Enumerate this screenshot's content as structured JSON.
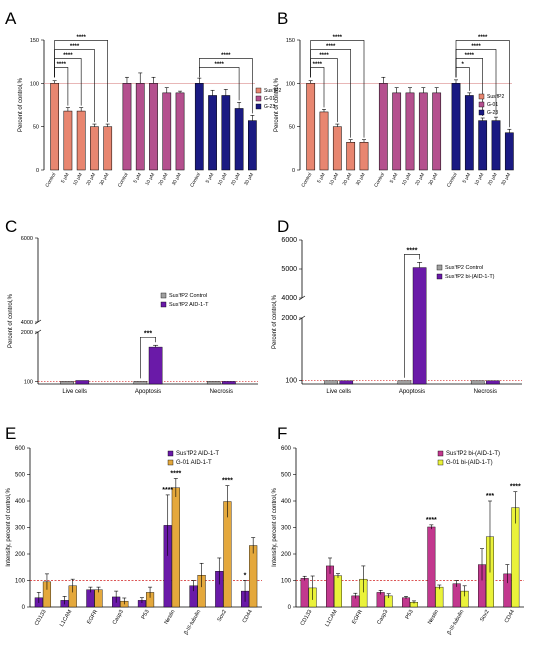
{
  "colors": {
    "salmon": "#e88670",
    "mauve": "#b4508e",
    "navy": "#1a1a82",
    "purple": "#6a1aa8",
    "gold": "#e4a83c",
    "magenta": "#c2388e",
    "yellow": "#eaf23a",
    "grey": "#a0a0a0",
    "refline": "#d98c8c",
    "redline": "#d12020",
    "axis": "#000000"
  },
  "chart_data": [
    {
      "type": "bar",
      "panel_label": "A",
      "ylabel": "Percent of control,%",
      "ylim": [
        0,
        150
      ],
      "yticks": [
        0,
        50,
        100,
        150
      ],
      "reference_line": 100,
      "legend": "right",
      "groups": [
        {
          "name": "SusʼfP2",
          "color": "salmon",
          "categories": [
            "Control",
            "5 μM",
            "10 μM",
            "20 μM",
            "30 μM"
          ],
          "values": [
            100,
            68,
            68,
            50,
            50
          ],
          "errors": [
            3,
            4,
            4,
            3,
            3
          ]
        },
        {
          "name": "G-01",
          "color": "mauve",
          "categories": [
            "Control",
            "5 μM",
            "10 μM",
            "20 μM",
            "30 μM"
          ],
          "values": [
            100,
            100,
            100,
            89,
            89
          ],
          "errors": [
            7,
            12,
            7,
            6,
            2
          ]
        },
        {
          "name": "G-23",
          "color": "navy",
          "categories": [
            "Control",
            "5 μM",
            "10 μM",
            "20 μM",
            "30 μM"
          ],
          "values": [
            100,
            86,
            86,
            71,
            57
          ],
          "errors": [
            6,
            6,
            7,
            7,
            6
          ]
        }
      ],
      "annotations": [
        {
          "from": 0,
          "to": 1,
          "text": "****"
        },
        {
          "from": 0,
          "to": 2,
          "text": "****"
        },
        {
          "from": 0,
          "to": 3,
          "text": "****"
        },
        {
          "from": 0,
          "to": 4,
          "text": "****"
        },
        {
          "from": 10,
          "to": 13,
          "text": "****"
        },
        {
          "from": 10,
          "to": 14,
          "text": "****"
        }
      ]
    },
    {
      "type": "bar",
      "panel_label": "B",
      "ylabel": "Percent of control,%",
      "ylim": [
        0,
        150
      ],
      "yticks": [
        0,
        50,
        100,
        150
      ],
      "reference_line": 100,
      "legend": "right",
      "groups": [
        {
          "name": "SusʼfP2",
          "color": "salmon",
          "categories": [
            "Control",
            "5 μM",
            "10 μM",
            "20 μM",
            "30 μM"
          ],
          "values": [
            100,
            67,
            50,
            32,
            32
          ],
          "errors": [
            3,
            3,
            3,
            3,
            3
          ]
        },
        {
          "name": "G-01",
          "color": "mauve",
          "categories": [
            "Control",
            "5 μM",
            "10 μM",
            "20 μM",
            "30 μM"
          ],
          "values": [
            100,
            89,
            89,
            89,
            89
          ],
          "errors": [
            7,
            6,
            6,
            6,
            6
          ]
        },
        {
          "name": "G-23",
          "color": "navy",
          "categories": [
            "Control",
            "5 μM",
            "10 μM",
            "20 μM",
            "30 μM"
          ],
          "values": [
            100,
            86,
            57,
            57,
            43
          ],
          "errors": [
            4,
            3,
            3,
            4,
            4
          ]
        }
      ],
      "annotations": [
        {
          "from": 0,
          "to": 1,
          "text": "****"
        },
        {
          "from": 0,
          "to": 2,
          "text": "****"
        },
        {
          "from": 0,
          "to": 3,
          "text": "****"
        },
        {
          "from": 0,
          "to": 4,
          "text": "****"
        },
        {
          "from": 10,
          "to": 11,
          "text": "*"
        },
        {
          "from": 10,
          "to": 12,
          "text": "****"
        },
        {
          "from": 10,
          "to": 13,
          "text": "****"
        },
        {
          "from": 10,
          "to": 14,
          "text": "****"
        }
      ]
    },
    {
      "type": "bar",
      "panel_label": "C",
      "ylabel": "Percent of control,%",
      "yticks": [
        100,
        2000,
        4000,
        6000
      ],
      "axis_break": [
        2000,
        4000
      ],
      "reference_line": 100,
      "legend": "right",
      "categories": [
        "Live cells",
        "Apoptosis",
        "Necrosis"
      ],
      "series": [
        {
          "name": "SusʼfP2 Control",
          "color": "grey",
          "values": [
            100,
            100,
            100
          ]
        },
        {
          "name": "SusʼfP2 AID-1-T",
          "color": "purple",
          "values": [
            135,
            1420,
            100
          ],
          "errors": [
            0,
            70,
            0
          ]
        }
      ],
      "annotations": [
        {
          "category": 1,
          "text": "***"
        }
      ]
    },
    {
      "type": "bar",
      "panel_label": "D",
      "ylabel": "Percent of control,%",
      "yticks": [
        100,
        2000,
        4000,
        5000,
        6000
      ],
      "axis_break": [
        2000,
        4000
      ],
      "reference_line": 100,
      "legend": "right",
      "categories": [
        "Live cells",
        "Apoptosis",
        "Necrosis"
      ],
      "series": [
        {
          "name": "SusʼfP2 Control",
          "color": "grey",
          "values": [
            100,
            100,
            100
          ]
        },
        {
          "name": "SusʼfP2 bi-(AID-1-T)",
          "color": "purple",
          "values": [
            100,
            5050,
            100
          ],
          "errors": [
            0,
            180,
            0
          ]
        }
      ],
      "annotations": [
        {
          "category": 1,
          "text": "****"
        }
      ]
    },
    {
      "type": "bar",
      "panel_label": "E",
      "ylabel": "Intensity, percent of control,%",
      "ylim": [
        0,
        600
      ],
      "yticks": [
        0,
        100,
        200,
        300,
        400,
        500,
        600
      ],
      "reference_line": 100,
      "legend": "top-right",
      "categories": [
        "CD133",
        "L1CAM",
        "EGFR",
        "Casp3",
        "P53",
        "Nestin",
        "β-III-tubulin",
        "Sox2",
        "CD44"
      ],
      "series": [
        {
          "name": "SusʼfP2 AID-1-T",
          "color": "purple",
          "values": [
            35,
            25,
            65,
            38,
            25,
            308,
            80,
            135,
            60
          ],
          "errors": [
            20,
            15,
            10,
            22,
            10,
            115,
            20,
            50,
            40
          ]
        },
        {
          "name": "G-01 AID-1-T",
          "color": "gold",
          "values": [
            95,
            80,
            65,
            22,
            55,
            450,
            120,
            398,
            232
          ],
          "errors": [
            30,
            25,
            10,
            12,
            20,
            35,
            45,
            60,
            30
          ]
        }
      ],
      "annotations": [
        {
          "category": 5,
          "series": 0,
          "text": "****"
        },
        {
          "category": 5,
          "series": 1,
          "text": "****"
        },
        {
          "category": 7,
          "series": 1,
          "text": "****"
        },
        {
          "category": 8,
          "series": 0,
          "text": "*"
        }
      ]
    },
    {
      "type": "bar",
      "panel_label": "F",
      "ylabel": "Intensity, percent of control,%",
      "ylim": [
        0,
        600
      ],
      "yticks": [
        0,
        100,
        200,
        300,
        400,
        500,
        600
      ],
      "reference_line": 100,
      "legend": "top-right",
      "categories": [
        "CD133",
        "L1CAM",
        "EGFR",
        "Casp3",
        "P53",
        "Nestin",
        "β-III-tubulin",
        "Sox2",
        "CD44"
      ],
      "series": [
        {
          "name": "SusʼfP2 bi-(AID-1-T)",
          "color": "magenta",
          "values": [
            108,
            155,
            42,
            55,
            35,
            302,
            88,
            160,
            125
          ],
          "errors": [
            8,
            30,
            10,
            8,
            5,
            8,
            12,
            60,
            35
          ]
        },
        {
          "name": "G-01 bi-(AID-1-T)",
          "color": "yellow",
          "values": [
            72,
            118,
            105,
            42,
            18,
            75,
            60,
            265,
            375
          ],
          "errors": [
            45,
            8,
            50,
            8,
            5,
            8,
            20,
            135,
            60
          ]
        }
      ],
      "annotations": [
        {
          "category": 5,
          "series": 0,
          "text": "****"
        },
        {
          "category": 7,
          "series": 1,
          "text": "***"
        },
        {
          "category": 8,
          "series": 1,
          "text": "****"
        }
      ]
    }
  ]
}
